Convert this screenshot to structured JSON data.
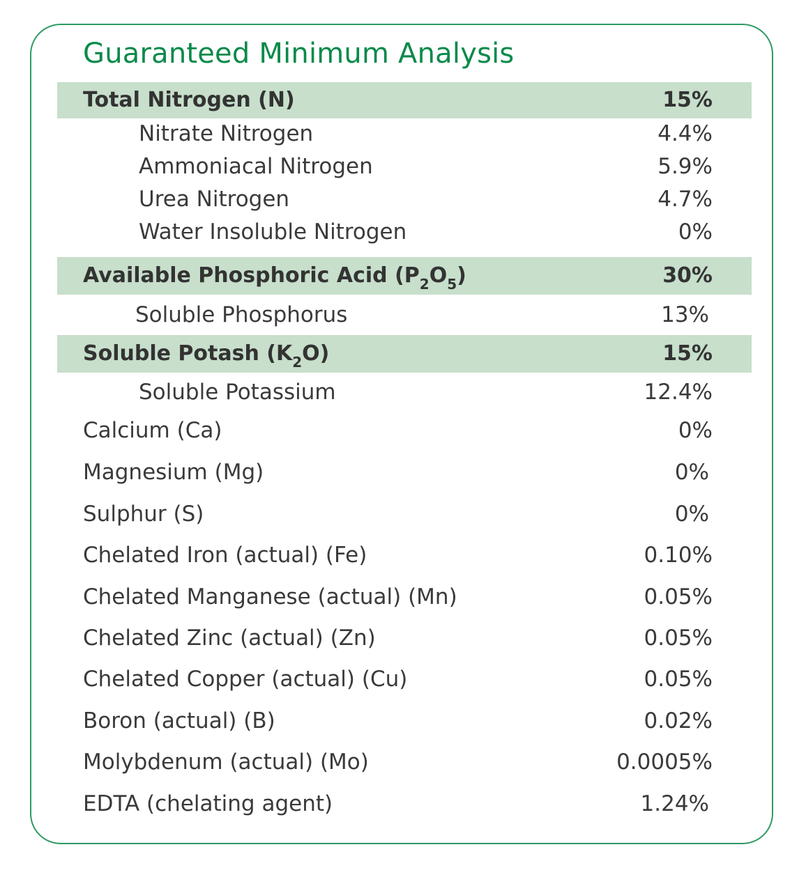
{
  "title": "Guaranteed Minimum Analysis",
  "nitrogen": {
    "label": "Total Nitrogen (N)",
    "value": "15%",
    "items": [
      {
        "label": "Nitrate Nitrogen",
        "value": "4.4%"
      },
      {
        "label": "Ammoniacal Nitrogen",
        "value": "5.9%"
      },
      {
        "label": "Urea Nitrogen",
        "value": "4.7%"
      },
      {
        "label": "Water Insoluble Nitrogen",
        "value": "0%"
      }
    ]
  },
  "phosphoric": {
    "label_prefix": "Available Phosphoric Acid (P",
    "sub1": "2",
    "label_mid": "O",
    "sub2": "5",
    "label_suffix": ")",
    "value": "30%",
    "items": [
      {
        "label": "Soluble Phosphorus",
        "value": "13%"
      }
    ]
  },
  "potash": {
    "label_prefix": "Soluble Potash (K",
    "sub1": "2",
    "label_suffix": "O)",
    "value": "15%",
    "items": [
      {
        "label": "Soluble Potassium",
        "value": "12.4%"
      }
    ]
  },
  "others": [
    {
      "label": "Calcium (Ca)",
      "value": "0%"
    },
    {
      "label": "Magnesium (Mg)",
      "value": "0%"
    },
    {
      "label": "Sulphur (S)",
      "value": "0%"
    },
    {
      "label": "Chelated Iron (actual) (Fe)",
      "value": "0.10%"
    },
    {
      "label": "Chelated Manganese (actual) (Mn)",
      "value": "0.05%"
    },
    {
      "label": "Chelated Zinc (actual) (Zn)",
      "value": "0.05%"
    },
    {
      "label": "Chelated Copper (actual) (Cu)",
      "value": "0.05%"
    },
    {
      "label": "Boron (actual) (B)",
      "value": "0.02%"
    },
    {
      "label": "Molybdenum (actual) (Mo)",
      "value": "0.0005%"
    },
    {
      "label": "EDTA (chelating agent)",
      "value": "1.24%"
    }
  ],
  "colors": {
    "accent": "#0a8a4a",
    "border": "#2e9a63",
    "band": "#c7dfcb"
  }
}
